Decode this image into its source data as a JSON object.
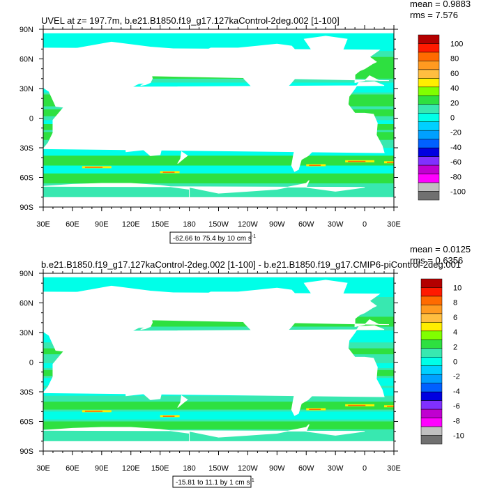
{
  "panels": [
    {
      "title": "UVEL at z= 197.7m, b.e21.B1850.f19_g17.127kaControl-2deg.002 [1-100]",
      "stats": {
        "mean": "mean = 0.9883",
        "rms": "rms = 7.576"
      },
      "range_text": "-62.66 to 75.4 by 10 cm s",
      "range_sup": "-1",
      "colorbar_labels": [
        "100",
        "80",
        "60",
        "40",
        "20",
        "0",
        "-20",
        "-40",
        "-60",
        "-80",
        "-100"
      ]
    },
    {
      "title": "b.e21.B1850.f19_g17.127kaControl-2deg.002 [1-100] - b.e21.B1850.f19_g17.CMIP6-piControl-2deg.001",
      "stats": {
        "mean": "mean = 0.0125",
        "rms": "rms = 0.6356"
      },
      "range_text": "-15.81 to 11.1 by 1 cm s",
      "range_sup": "-1",
      "colorbar_labels": [
        "10",
        "8",
        "6",
        "4",
        "2",
        "0",
        "-2",
        "-4",
        "-6",
        "-8",
        "-10"
      ]
    }
  ],
  "axes": {
    "lat_labels": [
      "90N",
      "60N",
      "30N",
      "0",
      "30S",
      "60S",
      "90S"
    ],
    "lon_labels": [
      "30E",
      "60E",
      "90E",
      "120E",
      "150E",
      "180",
      "150W",
      "120W",
      "90W",
      "60W",
      "30W",
      "0",
      "30E"
    ]
  },
  "colors": {
    "ocean_base": "#38e8b0",
    "ocean_light": "#00ffe8",
    "green": "#2ee040",
    "land": "#ffffff",
    "colorbar": [
      "#b40000",
      "#ff1a00",
      "#ff6a00",
      "#ff9a20",
      "#ffbe40",
      "#ffee00",
      "#80ff00",
      "#2ee040",
      "#38e8b0",
      "#00ffe8",
      "#00d0ff",
      "#00a0ff",
      "#0060ff",
      "#0000e0",
      "#8030ff",
      "#c000d0",
      "#ff00ff",
      "#c0c0c0",
      "#707070"
    ]
  }
}
